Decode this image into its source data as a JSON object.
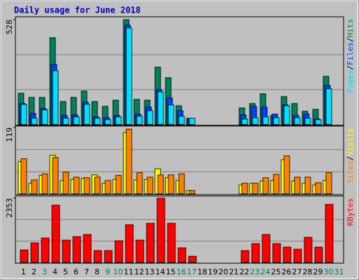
{
  "chart_data": [
    {
      "type": "bar",
      "title": "Daily usage for June 2018",
      "ylim": [
        0,
        528
      ],
      "yticks": [
        528
      ],
      "legend_separator": "/",
      "series": [
        {
          "name": "Hits",
          "color": "#00805c",
          "values": [
            158,
            137,
            137,
            437,
            116,
            137,
            169,
            116,
            92,
            123,
            528,
            127,
            123,
            289,
            236,
            95,
            32,
            0,
            0,
            0,
            0,
            84,
            106,
            155,
            46,
            141,
            106,
            67,
            77,
            243,
            0
          ]
        },
        {
          "name": "Files",
          "color": "#0040ff",
          "values": [
            106,
            56,
            81,
            303,
            46,
            49,
            113,
            39,
            35,
            46,
            500,
            53,
            88,
            176,
            134,
            70,
            32,
            0,
            0,
            0,
            0,
            49,
            92,
            88,
            53,
            99,
            46,
            53,
            28,
            197,
            0
          ]
        },
        {
          "name": "Pages",
          "color": "#00e0ff",
          "values": [
            102,
            32,
            74,
            271,
            32,
            39,
            102,
            32,
            25,
            39,
            486,
            42,
            70,
            165,
            99,
            42,
            32,
            0,
            0,
            0,
            0,
            28,
            35,
            39,
            35,
            95,
            35,
            32,
            25,
            180,
            0
          ]
        }
      ]
    },
    {
      "type": "bar",
      "ylim": [
        0,
        119
      ],
      "yticks": [
        119
      ],
      "legend_separator": "/",
      "series": [
        {
          "name": "Visits",
          "color": "#ffff00",
          "values": [
            58,
            19,
            33,
            69,
            24,
            26,
            28,
            34,
            19,
            26,
            110,
            25,
            26,
            45,
            29,
            24,
            6,
            0,
            0,
            0,
            0,
            16,
            19,
            23,
            24,
            61,
            23,
            19,
            16,
            24,
            0
          ]
        },
        {
          "name": "Sites",
          "color": "#ff8000",
          "values": [
            63,
            25,
            36,
            65,
            39,
            30,
            29,
            30,
            24,
            33,
            116,
            38,
            30,
            34,
            34,
            36,
            6,
            0,
            0,
            0,
            0,
            19,
            19,
            29,
            35,
            68,
            30,
            30,
            20,
            38,
            0
          ]
        }
      ]
    },
    {
      "type": "bar",
      "ylim": [
        0,
        2353
      ],
      "yticks": [
        2353
      ],
      "categories": [
        "1",
        "2",
        "3",
        "4",
        "5",
        "6",
        "7",
        "8",
        "9",
        "10",
        "11",
        "12",
        "13",
        "14",
        "15",
        "16",
        "17",
        "18",
        "19",
        "20",
        "21",
        "22",
        "23",
        "24",
        "25",
        "26",
        "27",
        "28",
        "29",
        "30",
        "31"
      ],
      "category_colors": [
        "#000000",
        "#000000",
        "#00805c",
        "#000000",
        "#000000",
        "#000000",
        "#000000",
        "#000000",
        "#00805c",
        "#00805c",
        "#000000",
        "#000000",
        "#000000",
        "#000000",
        "#000000",
        "#00805c",
        "#00805c",
        "#000000",
        "#000000",
        "#000000",
        "#000000",
        "#000000",
        "#00805c",
        "#00805c",
        "#000000",
        "#000000",
        "#000000",
        "#000000",
        "#000000",
        "#00805c",
        "#00805c"
      ],
      "series": [
        {
          "name": "KBytes",
          "color": "#ff0000",
          "values": [
            460,
            716,
            895,
            2097,
            818,
            946,
            1023,
            435,
            435,
            793,
            1381,
            818,
            1432,
            2353,
            1432,
            537,
            230,
            0,
            0,
            0,
            0,
            435,
            690,
            1023,
            690,
            563,
            486,
            921,
            563,
            2123,
            0
          ]
        }
      ]
    }
  ]
}
